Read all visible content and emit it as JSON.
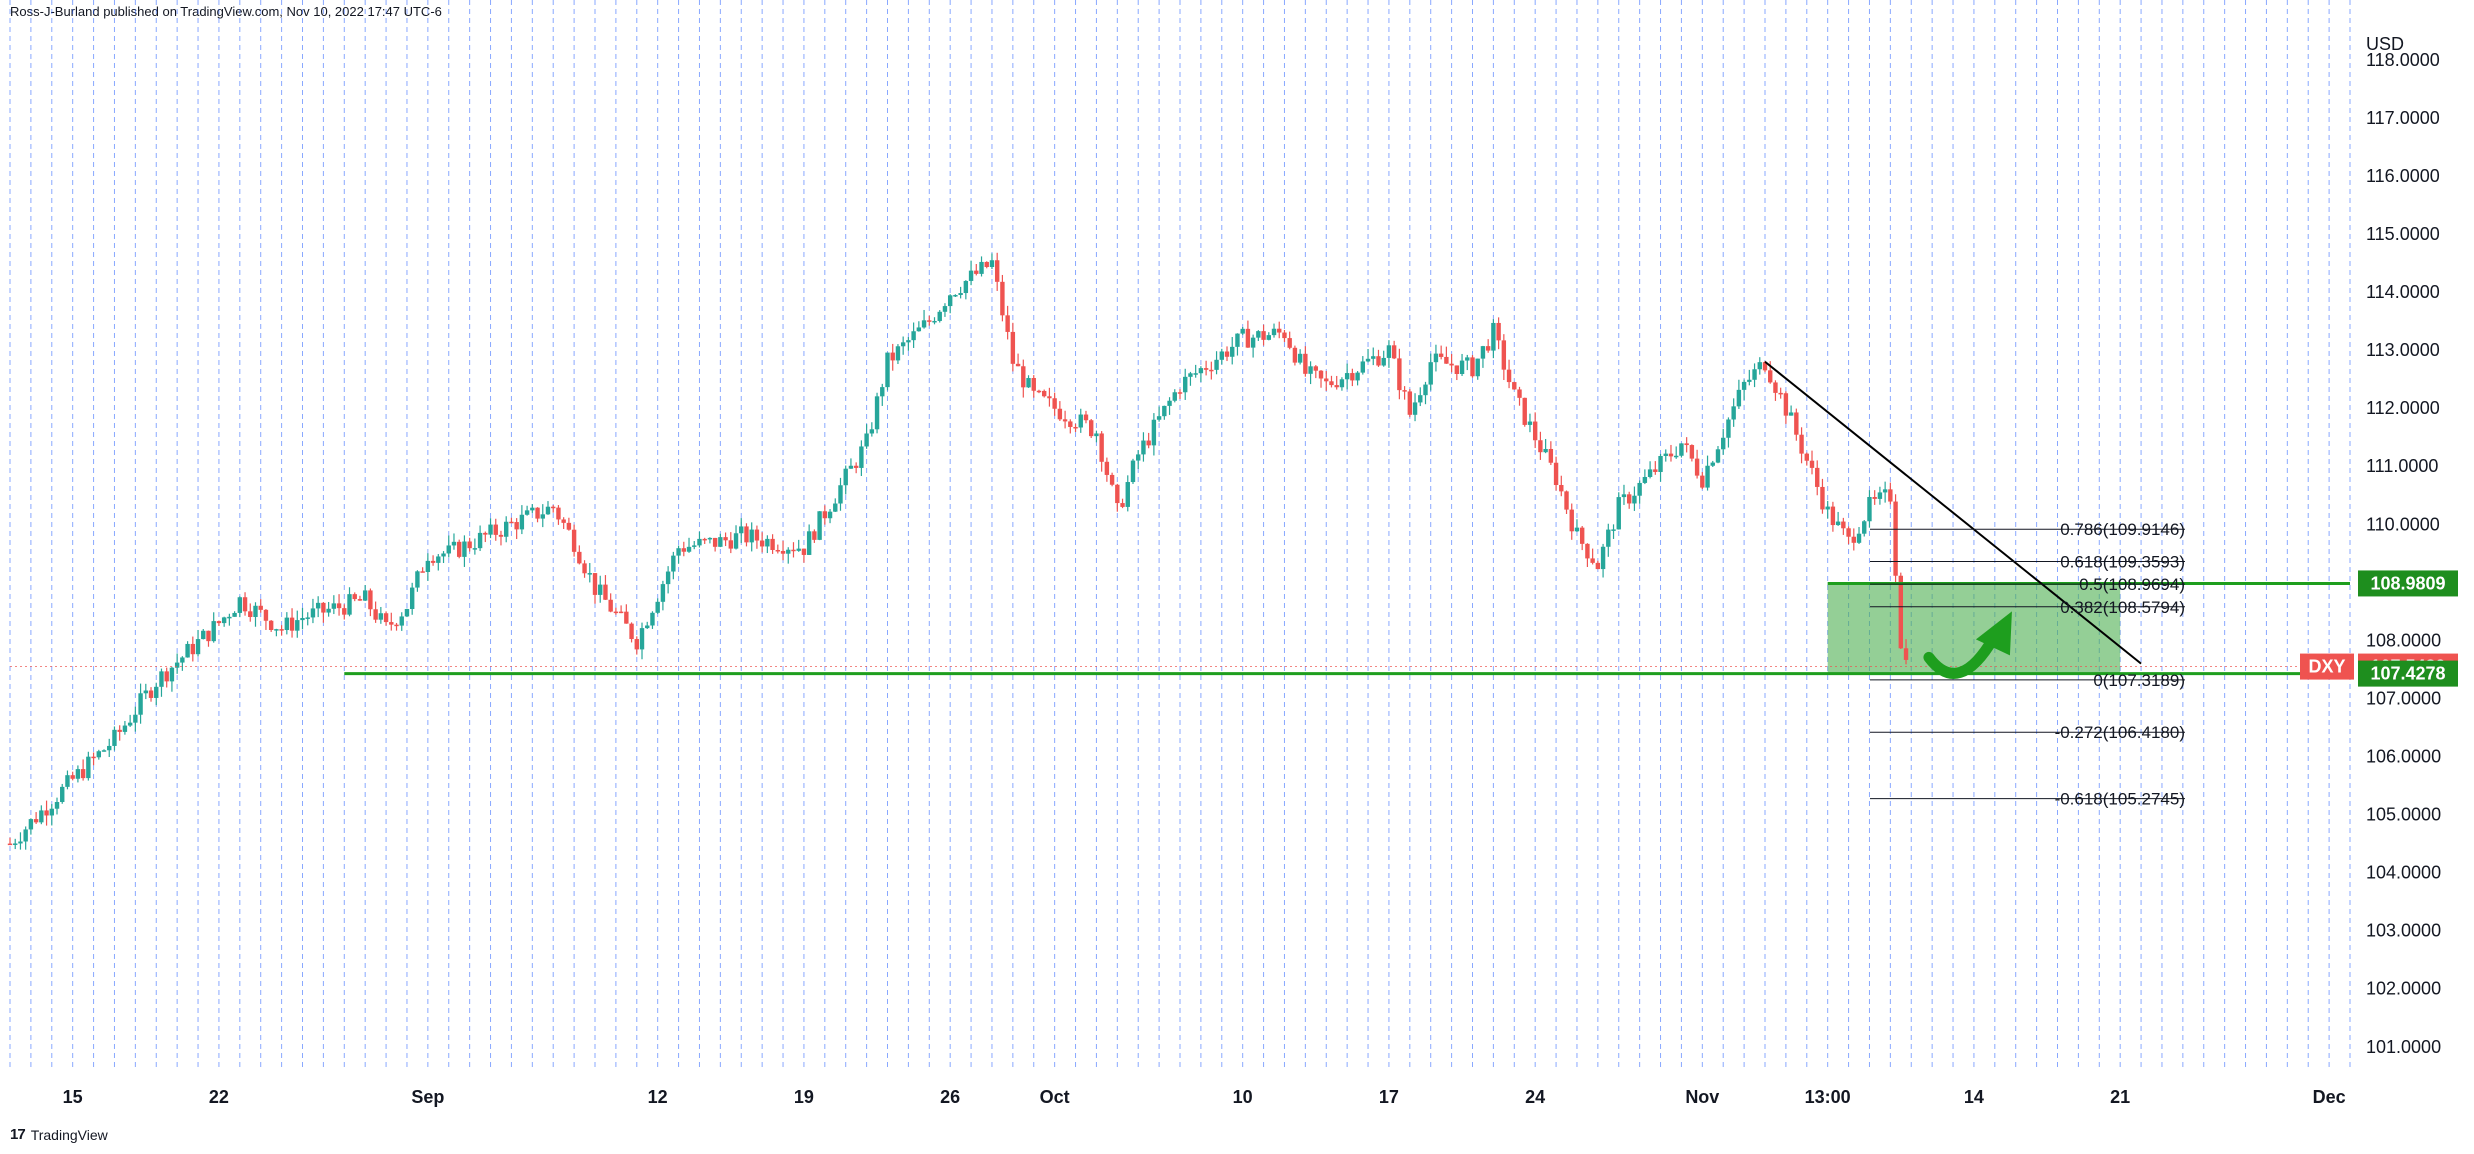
{
  "header": {
    "text": "Ross-J-Burland published on TradingView.com, Nov 10, 2022 17:47 UTC-6"
  },
  "footer": {
    "logo_mark": "17",
    "logo_text": "TradingView"
  },
  "colors": {
    "up": "#26a69a",
    "down": "#ef5350",
    "support": "#1e9e1e",
    "zone": "#4caf50",
    "grid": "#2962ff",
    "tag_dxy": "#ef5350",
    "tag_green": "#1e8e1e"
  },
  "chart_data": {
    "type": "candlestick",
    "title": "",
    "symbol": "DXY",
    "currency": "USD",
    "ylim": [
      100.6,
      118.6
    ],
    "y_ticks": [
      101,
      102,
      103,
      104,
      105,
      106,
      107,
      108,
      109,
      110,
      111,
      112,
      113,
      114,
      115,
      116,
      117,
      118
    ],
    "y_tick_labels": [
      "101.0000",
      "102.0000",
      "103.0000",
      "104.0000",
      "105.0000",
      "106.0000",
      "107.0000",
      "108.0000",
      "109.0000",
      "110.0000",
      "111.0000",
      "112.0000",
      "113.0000",
      "114.0000",
      "115.0000",
      "116.0000",
      "117.0000",
      "118.0000"
    ],
    "x_axis": {
      "start": "2022-08-12",
      "end": "2022-12-02",
      "ticks": [
        {
          "date": "2022-08-15",
          "label": "15"
        },
        {
          "date": "2022-08-22",
          "label": "22"
        },
        {
          "date": "2022-09-01",
          "label": "Sep"
        },
        {
          "date": "2022-09-12",
          "label": "12"
        },
        {
          "date": "2022-09-19",
          "label": "19"
        },
        {
          "date": "2022-09-26",
          "label": "26"
        },
        {
          "date": "2022-10-01",
          "label": "Oct"
        },
        {
          "date": "2022-10-10",
          "label": "10"
        },
        {
          "date": "2022-10-17",
          "label": "17"
        },
        {
          "date": "2022-10-24",
          "label": "24"
        },
        {
          "date": "2022-11-01",
          "label": "Nov"
        },
        {
          "date": "2022-11-07",
          "label": "13:00"
        },
        {
          "date": "2022-11-14",
          "label": "14"
        },
        {
          "date": "2022-11-21",
          "label": "21"
        },
        {
          "date": "2022-12-01",
          "label": "Dec"
        }
      ]
    },
    "price_path": [
      [
        "2022-08-12",
        104.5
      ],
      [
        "2022-08-15",
        105.6
      ],
      [
        "2022-08-17",
        106.3
      ],
      [
        "2022-08-19",
        107.3
      ],
      [
        "2022-08-22",
        108.3
      ],
      [
        "2022-08-23",
        108.7
      ],
      [
        "2022-08-25",
        108.2
      ],
      [
        "2022-08-26",
        108.4
      ],
      [
        "2022-08-29",
        108.7
      ],
      [
        "2022-08-30",
        108.2
      ],
      [
        "2022-08-31",
        108.6
      ],
      [
        "2022-09-01",
        109.5
      ],
      [
        "2022-09-02",
        109.5
      ],
      [
        "2022-09-05",
        110.0
      ],
      [
        "2022-09-07",
        110.3
      ],
      [
        "2022-09-08",
        109.7
      ],
      [
        "2022-09-09",
        108.9
      ],
      [
        "2022-09-11",
        108.0
      ],
      [
        "2022-09-13",
        109.6
      ],
      [
        "2022-09-15",
        109.7
      ],
      [
        "2022-09-16",
        109.8
      ],
      [
        "2022-09-19",
        109.6
      ],
      [
        "2022-09-20",
        110.2
      ],
      [
        "2022-09-21",
        110.8
      ],
      [
        "2022-09-22",
        111.4
      ],
      [
        "2022-09-23",
        112.8
      ],
      [
        "2022-09-25",
        113.5
      ],
      [
        "2022-09-26",
        114.0
      ],
      [
        "2022-09-28",
        114.5
      ],
      [
        "2022-09-29",
        112.8
      ],
      [
        "2022-09-30",
        112.2
      ],
      [
        "2022-10-03",
        111.6
      ],
      [
        "2022-10-04",
        110.2
      ],
      [
        "2022-10-05",
        111.2
      ],
      [
        "2022-10-07",
        112.4
      ],
      [
        "2022-10-10",
        113.2
      ],
      [
        "2022-10-12",
        113.3
      ],
      [
        "2022-10-13",
        112.6
      ],
      [
        "2022-10-14",
        112.4
      ],
      [
        "2022-10-17",
        113.0
      ],
      [
        "2022-10-18",
        111.9
      ],
      [
        "2022-10-19",
        112.8
      ],
      [
        "2022-10-21",
        112.7
      ],
      [
        "2022-10-22",
        113.3
      ],
      [
        "2022-10-23",
        112.2
      ],
      [
        "2022-10-25",
        110.8
      ],
      [
        "2022-10-26",
        109.8
      ],
      [
        "2022-10-27",
        109.3
      ],
      [
        "2022-10-28",
        110.3
      ],
      [
        "2022-10-31",
        111.4
      ],
      [
        "2022-11-01",
        110.8
      ],
      [
        "2022-11-03",
        112.4
      ],
      [
        "2022-11-04",
        112.8
      ],
      [
        "2022-11-05",
        112.0
      ],
      [
        "2022-11-07",
        110.2
      ],
      [
        "2022-11-08",
        109.7
      ],
      [
        "2022-11-09",
        110.3
      ],
      [
        "2022-11-10",
        110.5
      ],
      [
        "2022-11-10.5",
        108.0
      ],
      [
        "2022-11-10.8",
        107.55
      ]
    ],
    "last_price": {
      "label": "DXY",
      "value": "107.5489"
    },
    "support": {
      "value": 107.4278,
      "label": "107.4278",
      "start": "2022-08-28"
    },
    "resistance": {
      "value": 108.9809,
      "label": "108.9809"
    },
    "zone": {
      "low": 107.4278,
      "high": 108.9809,
      "start": "2022-11-07",
      "end": "2022-11-21"
    },
    "trendline": {
      "from": [
        "2022-11-04",
        112.8
      ],
      "to": [
        "2022-11-22",
        107.6
      ]
    },
    "fibonacci": [
      {
        "level": "0.786",
        "value": 109.9146,
        "label": "0.786(109.9146)"
      },
      {
        "level": "0.618",
        "value": 109.3593,
        "label": "0.618(109.3593)"
      },
      {
        "level": "0.5",
        "value": 108.9694,
        "label": "0.5(108.9694)"
      },
      {
        "level": "0.382",
        "value": 108.5794,
        "label": "0.382(108.5794)"
      },
      {
        "level": "0",
        "value": 107.3189,
        "label": "0(107.3189)"
      },
      {
        "level": "-0.272",
        "value": 106.418,
        "label": "-0.272(106.4180)"
      },
      {
        "level": "-0.618",
        "value": 105.2745,
        "label": "-0.618(105.2745)"
      }
    ],
    "annotation": "green-curved-arrow-up"
  }
}
